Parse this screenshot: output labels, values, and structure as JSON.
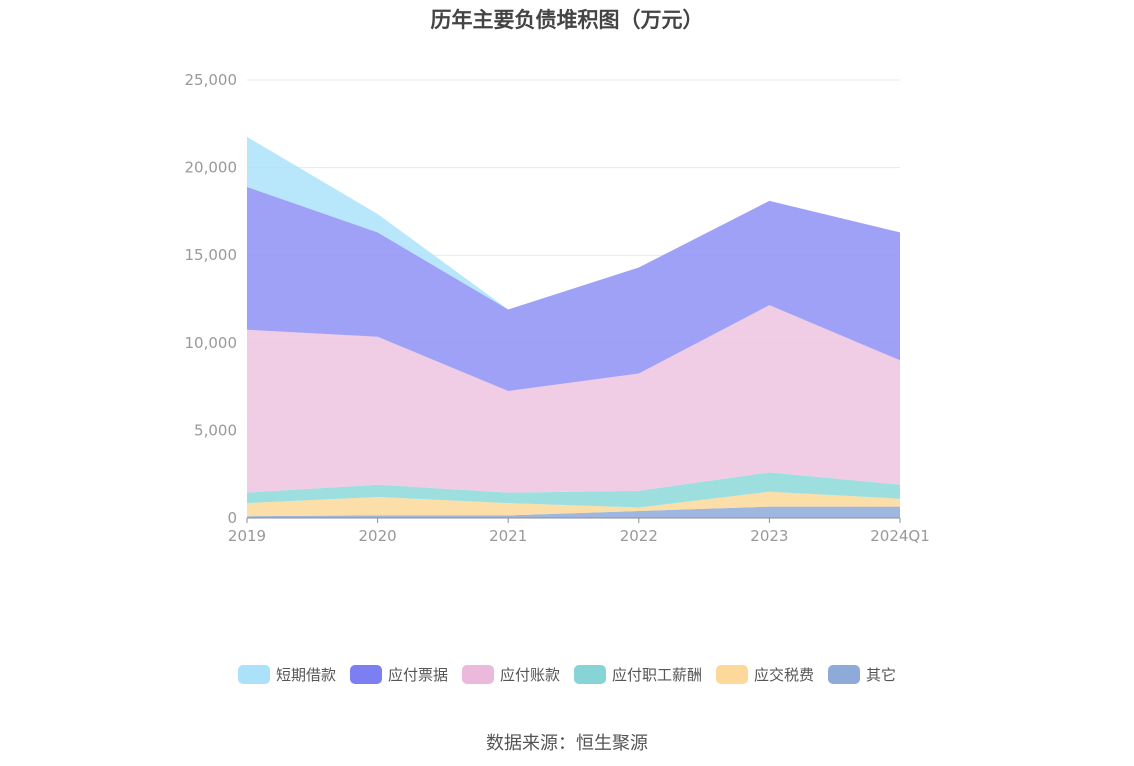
{
  "chart_data": {
    "type": "area",
    "stacked": true,
    "title": "历年主要负债堆积图（万元）",
    "categories": [
      "2019",
      "2020",
      "2021",
      "2022",
      "2023",
      "2024Q1"
    ],
    "y_ticks": [
      "0",
      "5,000",
      "10,000",
      "15,000",
      "20,000",
      "25,000"
    ],
    "ylim": [
      0,
      25000
    ],
    "grid": true,
    "legend_position": "bottom",
    "series": [
      {
        "name": "其它",
        "color": "#8eaad8",
        "values": [
          100,
          150,
          150,
          400,
          650,
          650
        ]
      },
      {
        "name": "应交税费",
        "color": "#fcd89a",
        "values": [
          750,
          1050,
          700,
          200,
          850,
          450
        ]
      },
      {
        "name": "应付职工薪酬",
        "color": "#8cd9d9",
        "values": [
          600,
          700,
          600,
          950,
          1100,
          800
        ]
      },
      {
        "name": "应付账款",
        "color": "#efc4e1",
        "values": [
          9300,
          8450,
          5800,
          6700,
          9550,
          7100
        ]
      },
      {
        "name": "应付票据",
        "color": "#8d91f5",
        "values": [
          8150,
          5950,
          4650,
          6050,
          5950,
          7300
        ]
      },
      {
        "name": "短期借款",
        "color": "#ace2f9",
        "values": [
          2850,
          1050,
          0,
          0,
          0,
          0
        ]
      }
    ]
  },
  "legend": [
    {
      "label": "短期借款",
      "color": "#ace2f9"
    },
    {
      "label": "应付票据",
      "color": "#7b7ff2"
    },
    {
      "label": "应付账款",
      "color": "#eab9db"
    },
    {
      "label": "应付职工薪酬",
      "color": "#86d4d6"
    },
    {
      "label": "应交税费",
      "color": "#fcd89a"
    },
    {
      "label": "其它",
      "color": "#8eaad8"
    }
  ],
  "source": "数据来源：恒生聚源"
}
